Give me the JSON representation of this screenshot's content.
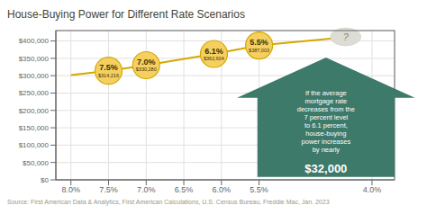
{
  "chart_data": {
    "type": "line",
    "title": "House-Buying Power for Different Rate Scenarios",
    "xlim": [
      8.2,
      3.7
    ],
    "ylim": [
      0,
      430000
    ],
    "xticks": [
      {
        "value": 8.0,
        "label": "8.0%"
      },
      {
        "value": 7.5,
        "label": "7.5%"
      },
      {
        "value": 7.0,
        "label": "7.0%"
      },
      {
        "value": 6.5,
        "label": "6.5%"
      },
      {
        "value": 6.0,
        "label": "6.0%"
      },
      {
        "value": 5.5,
        "label": "5.5%"
      },
      {
        "value": 4.0,
        "label": "4.0%"
      }
    ],
    "yticks": [
      {
        "value": 0,
        "label": "$0"
      },
      {
        "value": 50000,
        "label": "$50,000"
      },
      {
        "value": 100000,
        "label": "$100,000"
      },
      {
        "value": 150000,
        "label": "$150,000"
      },
      {
        "value": 200000,
        "label": "$200,000"
      },
      {
        "value": 250000,
        "label": "$250,000"
      },
      {
        "value": 300000,
        "label": "$300,000"
      },
      {
        "value": 350000,
        "label": "$350,000"
      },
      {
        "value": 400000,
        "label": "$400,000"
      }
    ],
    "grid": true,
    "series": [
      {
        "type": "line",
        "color": "#d4a800",
        "x": [
          8.0,
          7.5,
          7.0,
          6.1,
          5.5,
          4.3
        ],
        "values": [
          302000,
          314216,
          330280,
          362604,
          387003,
          412000
        ]
      },
      {
        "type": "scatter",
        "color": "#f5d060",
        "marker": "circle",
        "x": [
          7.5,
          7.0,
          6.1,
          5.5
        ],
        "values": [
          314216,
          330280,
          362604,
          387003
        ],
        "value_labels": [
          "$314,216",
          "$330,280",
          "$362,604",
          "$387,003"
        ],
        "data_labels": true
      }
    ],
    "annotations": [
      {
        "type": "label",
        "text": "7.5%",
        "x": 7.5,
        "y": 314216,
        "color": "#3a3000"
      },
      {
        "type": "label",
        "text": "7.0%",
        "x": 7.0,
        "y": 330280,
        "color": "#3a3000"
      },
      {
        "type": "label",
        "text": "6.1%",
        "x": 6.1,
        "y": 362604,
        "color": "#3a3000"
      },
      {
        "type": "label",
        "text": "5.5%",
        "x": 5.5,
        "y": 387003,
        "color": "#3a3000"
      },
      {
        "type": "bubble",
        "text": "?",
        "x": 4.35,
        "y": 412000,
        "color": "#ddddd5"
      },
      {
        "type": "arrow",
        "text": [
          "If the average\nmortgage rate\ndecreases from the\n7 percent level\nto 6.1 percent,\nhouse-buying\npower increases\nby nearly",
          "$32,000"
        ],
        "color": "#3d7a6a"
      },
      {
        "type": "note",
        "text": "Source: First American Data & Analytics, First American Calculations, U.S. Census Bureau, Freddie Mac, Jan. 2023"
      }
    ]
  }
}
